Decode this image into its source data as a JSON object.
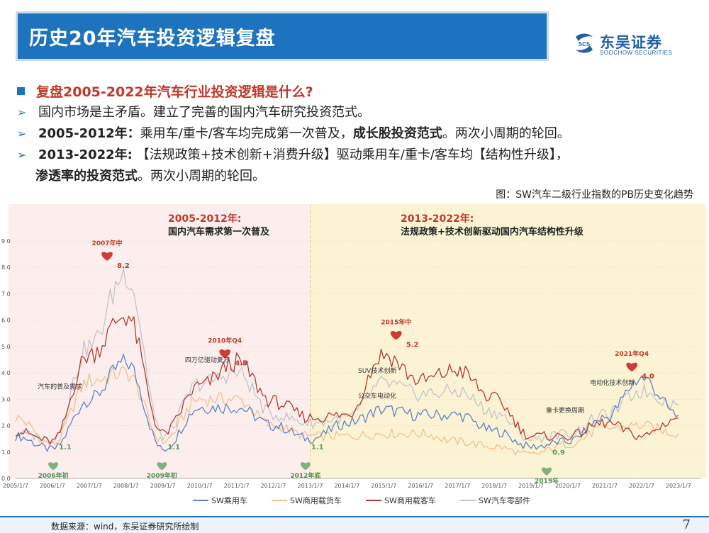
{
  "header": {
    "title": "历史20年汽车投资逻辑复盘"
  },
  "logo": {
    "cn": "东吴证券",
    "en": "SOOCHOW SECURITIES",
    "mark": "SCS"
  },
  "bullets": {
    "main": "复盘2005-2022年汽车行业投资逻辑是什么?",
    "item1": "国内市场是主矛盾。建立了完善的国内汽车研究投资范式。",
    "item2_prefix": "2005-2012年：",
    "item2_text": "乘用车/重卡/客车均完成第一次普及，",
    "item2_bold": "成长股投资范式",
    "item2_suffix": "。两次小周期的轮回。",
    "item3_prefix": "2013-2022年:",
    "item3_text": "【法规政策+技术创新+消费升级】驱动乘用车/重卡/客车均【结构性升级】，",
    "item3_bold": "渗透率的投资范式",
    "item3_suffix": "。两次小周期的轮回。"
  },
  "figure_caption": "图：SW汽车二级行业指数的PB历史变化趋势",
  "footer": {
    "source": "数据来源：wind，东吴证券研究所绘制",
    "page": "7"
  },
  "colors": {
    "title_bg": "#1e73be",
    "accent_red": "#c0392b",
    "era1_bg": "#fbeeed",
    "era2_bg": "#fbf3d4",
    "line_passenger": "#5f82c4",
    "line_truck": "#f3c08f",
    "line_bus": "#b33a33",
    "line_parts": "#c4c4c9"
  },
  "chart_data": {
    "type": "line",
    "x": [
      "2005/1/7",
      "2006/1/7",
      "2007/1/7",
      "2008/1/7",
      "2009/1/7",
      "2010/1/7",
      "2011/1/7",
      "2012/1/7",
      "2013/1/7",
      "2014/1/7",
      "2015/1/7",
      "2016/1/7",
      "2017/1/7",
      "2018/1/7",
      "2019/1/7",
      "2020/1/7",
      "2021/1/7",
      "2022/1/7",
      "2023/1/7"
    ],
    "ylim": [
      0,
      9
    ],
    "yticks": [
      "0.0",
      "1.0",
      "2.0",
      "3.0",
      "4.0",
      "5.0",
      "6.0",
      "7.0",
      "8.0",
      "9.0"
    ],
    "grid": true,
    "legend_position": "bottom",
    "series": [
      {
        "name": "SW乘用车",
        "values": [
          1.6,
          1.1,
          3.0,
          4.4,
          1.1,
          2.7,
          2.7,
          2.0,
          1.5,
          2.1,
          2.6,
          2.4,
          2.4,
          1.8,
          1.2,
          1.4,
          2.3,
          3.8,
          2.4
        ]
      },
      {
        "name": "SW商用载货车",
        "values": [
          2.3,
          1.3,
          3.7,
          4.0,
          1.4,
          3.0,
          3.0,
          2.0,
          1.6,
          1.6,
          1.7,
          1.7,
          1.4,
          1.2,
          0.9,
          1.3,
          1.9,
          2.0,
          1.7
        ]
      },
      {
        "name": "SW商用载客车",
        "values": [
          1.8,
          1.4,
          4.7,
          6.2,
          1.7,
          3.5,
          4.4,
          2.9,
          2.3,
          2.4,
          4.7,
          3.7,
          4.1,
          3.0,
          1.6,
          1.6,
          2.1,
          1.6,
          2.3
        ]
      },
      {
        "name": "SW汽车零部件",
        "values": [
          1.7,
          1.5,
          5.0,
          7.8,
          1.6,
          3.6,
          4.0,
          2.4,
          2.1,
          2.3,
          3.6,
          3.2,
          3.3,
          2.5,
          1.5,
          1.7,
          2.4,
          3.3,
          2.8
        ]
      }
    ],
    "eras": [
      {
        "range": "2005-2012年:",
        "title": "国内汽车需求第一次普及"
      },
      {
        "range": "2013-2022年:",
        "title": "法规政策+技术创新驱动国内汽车结构性升级"
      }
    ],
    "peaks": [
      {
        "label": "2007年中",
        "value": "8.2",
        "x": 2007.6,
        "y": 8.2
      },
      {
        "label": "2010年Q4",
        "value": "4.5",
        "x": 2010.8,
        "y": 4.5
      },
      {
        "label": "2015年中",
        "value": "5.2",
        "x": 2015.45,
        "y": 5.2
      },
      {
        "label": "2021年Q4",
        "value": "4.0",
        "x": 2021.85,
        "y": 4.0
      }
    ],
    "troughs": [
      {
        "label": "2006年初",
        "value": "1.1",
        "x": 2006.1,
        "y": 1.1
      },
      {
        "label": "2009年初",
        "value": "1.1",
        "x": 2009.05,
        "y": 1.1
      },
      {
        "label": "2012年底",
        "value": "1.1",
        "x": 2012.95,
        "y": 1.1
      },
      {
        "label": "2019年",
        "value": "0.9",
        "x": 2019.5,
        "y": 0.9
      }
    ],
    "annotations": [
      {
        "text": "汽车的普及需求",
        "x": 2005.6,
        "y": 3.4
      },
      {
        "text": "四万亿驱动复苏",
        "x": 2009.6,
        "y": 4.4
      },
      {
        "text": "SUV技术创新",
        "x": 2014.3,
        "y": 4.0
      },
      {
        "text": "公交车电动化",
        "x": 2014.3,
        "y": 3.05
      },
      {
        "text": "重卡更换周期",
        "x": 2019.4,
        "y": 2.5
      },
      {
        "text": "电动化技术创新",
        "x": 2020.6,
        "y": 3.55
      }
    ]
  }
}
